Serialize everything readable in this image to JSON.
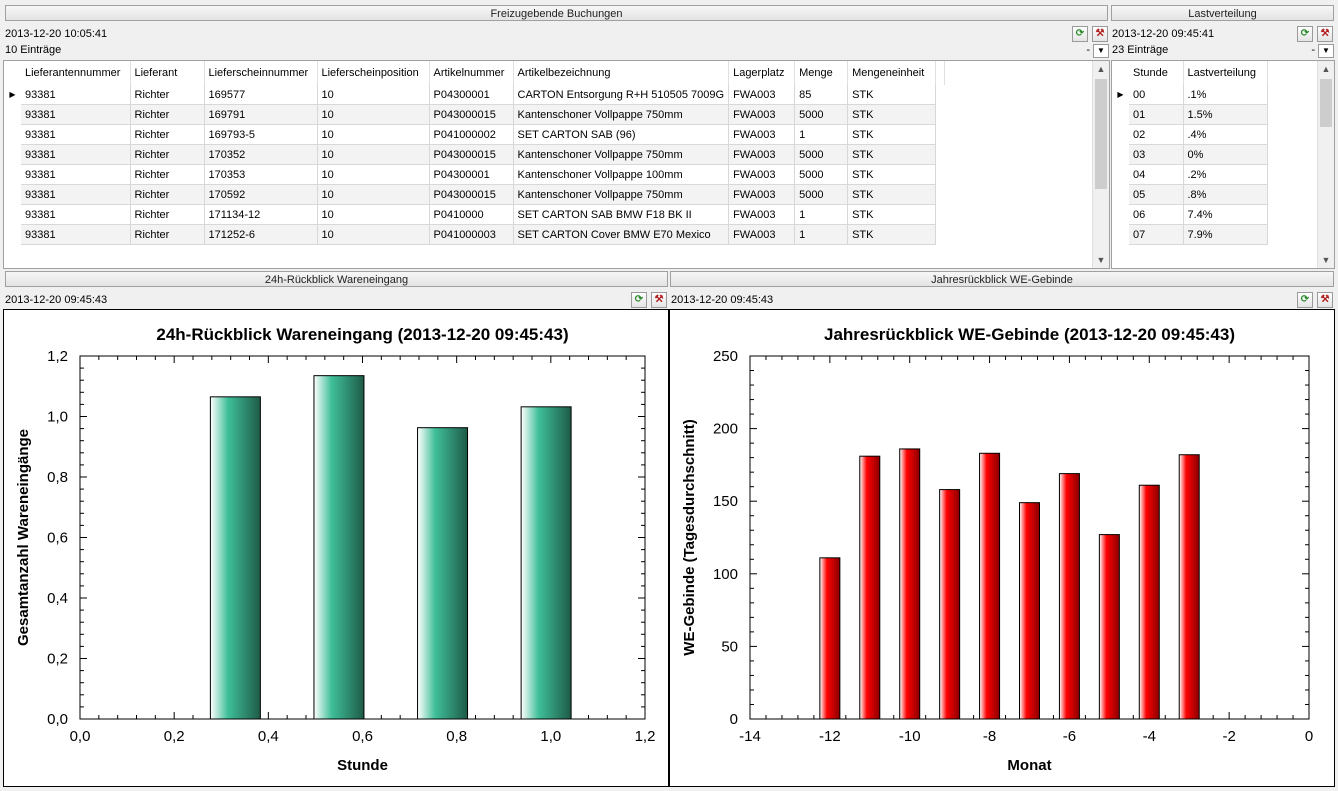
{
  "bookings": {
    "title": "Freizugebende Buchungen",
    "timestamp": "2013-12-20 10:05:41",
    "count": "10 Einträge",
    "dash": "-",
    "columns": [
      "Lieferantennummer",
      "Lieferant",
      "Lieferscheinnummer",
      "Lieferscheinposition",
      "Artikelnummer",
      "Artikelbezeichnung",
      "Lagerplatz",
      "Menge",
      "Mengeneinheit"
    ],
    "rows": [
      [
        "93381",
        "Richter",
        "169577",
        "10",
        "P04300001",
        "CARTON Entsorgung R+H 510505 7009G",
        "FWA003",
        "85",
        "STK"
      ],
      [
        "93381",
        "Richter",
        "169791",
        "10",
        "P043000015",
        "Kantenschoner Vollpappe 750mm",
        "FWA003",
        "5000",
        "STK"
      ],
      [
        "93381",
        "Richter",
        "169793-5",
        "10",
        "P041000002",
        "SET CARTON SAB (96)",
        "FWA003",
        "1",
        "STK"
      ],
      [
        "93381",
        "Richter",
        "170352",
        "10",
        "P043000015",
        "Kantenschoner Vollpappe 750mm",
        "FWA003",
        "5000",
        "STK"
      ],
      [
        "93381",
        "Richter",
        "170353",
        "10",
        "P04300001",
        "Kantenschoner Vollpappe 100mm",
        "FWA003",
        "5000",
        "STK"
      ],
      [
        "93381",
        "Richter",
        "170592",
        "10",
        "P043000015",
        "Kantenschoner Vollpappe 750mm",
        "FWA003",
        "5000",
        "STK"
      ],
      [
        "93381",
        "Richter",
        "171134-12",
        "10",
        "P0410000",
        "SET CARTON SAB BMW F18  BK II",
        "FWA003",
        "1",
        "STK"
      ],
      [
        "93381",
        "Richter",
        "171252-6",
        "10",
        "P041000003",
        "SET CARTON Cover BMW E70 Mexico",
        "FWA003",
        "1",
        "STK"
      ]
    ]
  },
  "load": {
    "title": "Lastverteilung",
    "timestamp": "2013-12-20 09:45:41",
    "count": "23 Einträge",
    "dash": "-",
    "columns": [
      "Stunde",
      "Lastverteilung"
    ],
    "rows": [
      [
        "00",
        ".1%"
      ],
      [
        "01",
        "1.5%"
      ],
      [
        "02",
        ".4%"
      ],
      [
        "03",
        "0%"
      ],
      [
        "04",
        ".2%"
      ],
      [
        "05",
        ".8%"
      ],
      [
        "06",
        "7.4%"
      ],
      [
        "07",
        "7.9%"
      ]
    ]
  },
  "receipts24h": {
    "title": "24h-Rückblick Wareneingang",
    "timestamp": "2013-12-20 09:45:43"
  },
  "yearly": {
    "title": "Jahresrückblick WE-Gebinde",
    "timestamp": "2013-12-20 09:45:43"
  },
  "chart_data": [
    {
      "type": "bar",
      "title": "24h-Rückblick Wareneingang (2013-12-20 09:45:43)",
      "xlabel": "Stunde",
      "ylabel": "Gesamtanzahl Wareneingänge",
      "xlim": [
        0.0,
        1.2
      ],
      "ylim": [
        0.0,
        1.2
      ],
      "xticks": [
        "0,0",
        "0,2",
        "0,4",
        "0,6",
        "0,8",
        "1,0",
        "1,2"
      ],
      "yticks": [
        "0,0",
        "0,2",
        "0,4",
        "0,6",
        "0,8",
        "1,0",
        "1,2"
      ],
      "x": [
        0.33,
        0.55,
        0.77,
        0.99
      ],
      "values": [
        1.065,
        1.135,
        0.963,
        1.032
      ],
      "color": "#3fbf99",
      "grid": false
    },
    {
      "type": "bar",
      "title": "Jahresrückblick WE-Gebinde (2013-12-20 09:45:43)",
      "xlabel": "Monat",
      "ylabel": "WE-Gebinde (Tagesdurchschnitt)",
      "xlim": [
        -14,
        0
      ],
      "ylim": [
        0,
        250
      ],
      "xticks": [
        "-14",
        "-12",
        "-10",
        "-8",
        "-6",
        "-4",
        "-2",
        "0"
      ],
      "yticks": [
        "0",
        "50",
        "100",
        "150",
        "200",
        "250"
      ],
      "x": [
        -12,
        -11,
        -10,
        -9,
        -8,
        -7,
        -6,
        -5,
        -4,
        -3
      ],
      "values": [
        111,
        181,
        186,
        158,
        183,
        149,
        169,
        127,
        161,
        182
      ],
      "color": "#ff0000",
      "grid": false
    }
  ]
}
